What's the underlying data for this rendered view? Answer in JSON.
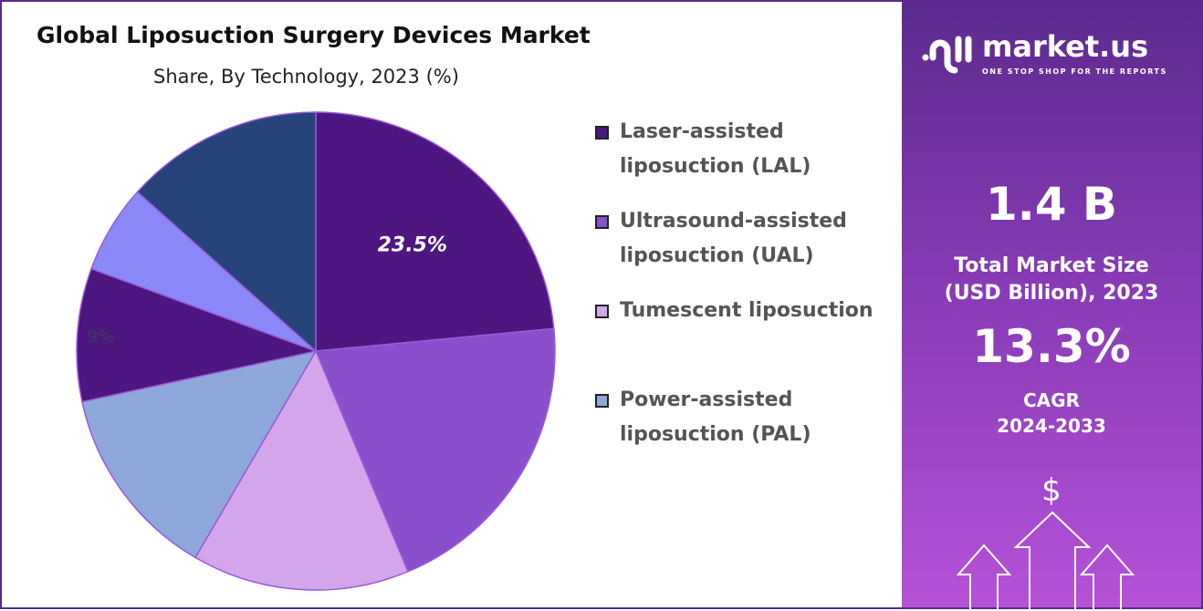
{
  "chart_data": {
    "type": "pie",
    "title": "Global Liposuction Surgery Devices Market",
    "subtitle": "Share, By Technology, 2023 (%)",
    "slices": [
      {
        "name": "Laser-assisted liposuction (LAL)",
        "value": 23.5,
        "color": "#4e1680",
        "label": "23.5%"
      },
      {
        "name": "Ultrasound-assisted liposuction (UAL)",
        "value": 20.2,
        "color": "#8a4fcc",
        "label": ""
      },
      {
        "name": "Tumescent liposuction",
        "value": 14.7,
        "color": "#d3a6ec",
        "label": ""
      },
      {
        "name": "Power-assisted liposuction (PAL)",
        "value": 13.2,
        "color": "#8fa8dc",
        "label": ""
      },
      {
        "name": "",
        "value": 9.0,
        "color": "#4e1680",
        "label": "9%"
      },
      {
        "name": "",
        "value": 6.0,
        "color": "#8a88f8",
        "label": ""
      },
      {
        "name": "",
        "value": 13.4,
        "color": "#26437a",
        "label": ""
      }
    ],
    "legend": [
      "Laser-assisted liposuction (LAL)",
      "Ultrasound-assisted liposuction (UAL)",
      "Tumescent liposuction",
      "Power-assisted liposuction (PAL)"
    ],
    "legend_position": "right"
  },
  "legend_lines": [
    [
      "Laser-assisted",
      "liposuction (LAL)"
    ],
    [
      "Ultrasound-assisted",
      "liposuction (UAL)"
    ],
    [
      "Tumescent liposuction",
      ""
    ],
    [
      "Power-assisted",
      "liposuction (PAL)"
    ]
  ],
  "panel": {
    "brand": "market.us",
    "tagline": "ONE STOP SHOP FOR THE REPORTS",
    "market_size": "1.4 B",
    "market_size_label_1": "Total Market Size",
    "market_size_label_2": "(USD Billion), 2023",
    "cagr": "13.3%",
    "cagr_label_1": "CAGR",
    "cagr_label_2": "2024-2033",
    "dollar": "$"
  }
}
